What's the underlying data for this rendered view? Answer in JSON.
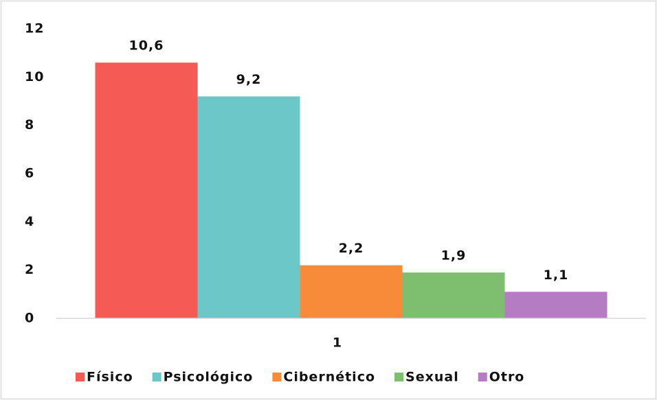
{
  "chart_data": {
    "type": "bar",
    "categories": [
      "1"
    ],
    "series": [
      {
        "name": "Físico",
        "color": "#f65a54",
        "values": [
          10.6
        ],
        "value_labels": [
          "10,6"
        ]
      },
      {
        "name": "Psicológico",
        "color": "#6cc8c8",
        "values": [
          9.2
        ],
        "value_labels": [
          "9,2"
        ]
      },
      {
        "name": "Cibernético",
        "color": "#f88b3a",
        "values": [
          2.2
        ],
        "value_labels": [
          "2,2"
        ]
      },
      {
        "name": "Sexual",
        "color": "#7dbf6e",
        "values": [
          1.9
        ],
        "value_labels": [
          "1,9"
        ]
      },
      {
        "name": "Otro",
        "color": "#b57bc3",
        "values": [
          1.1
        ],
        "value_labels": [
          "1,1"
        ]
      }
    ],
    "ylim": [
      0,
      12
    ],
    "yticks": [
      0,
      2,
      4,
      6,
      8,
      10,
      12
    ],
    "grid": false,
    "legend": "bottom"
  }
}
